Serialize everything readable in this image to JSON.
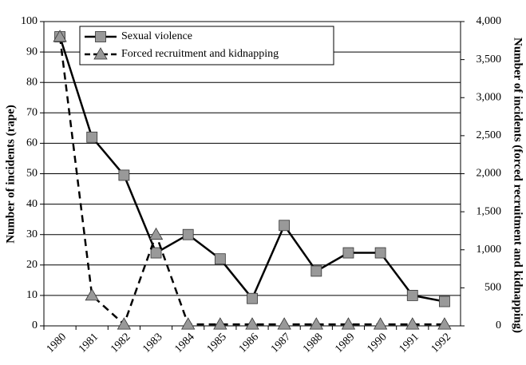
{
  "chart_data": {
    "type": "line",
    "categories": [
      "1980",
      "1981",
      "1982",
      "1983",
      "1984",
      "1985",
      "1986",
      "1987",
      "1988",
      "1989",
      "1990",
      "1991",
      "1992"
    ],
    "series": [
      {
        "name": "Sexual violence",
        "color": "#000000",
        "marker_color": "#999999",
        "marker": "square",
        "dash": false,
        "axis": "y",
        "values": [
          95,
          62,
          49.5,
          24,
          30,
          22,
          9,
          33,
          18,
          24,
          24,
          10,
          8
        ]
      },
      {
        "name": "Forced recruitment and kidnapping",
        "color": "#000000",
        "marker_color": "#999999",
        "marker": "triangle",
        "dash": true,
        "axis": "y2",
        "values": [
          3800,
          400,
          20,
          1200,
          20,
          20,
          20,
          20,
          20,
          20,
          20,
          20,
          20
        ]
      }
    ],
    "ylabel": "Number of incidents (rape)",
    "y2label": "Number of incidents (forced recruitment and kidnapping)",
    "ylim": [
      0,
      100
    ],
    "yticks": [
      0,
      10,
      20,
      30,
      40,
      50,
      60,
      70,
      80,
      90,
      100
    ],
    "y2lim": [
      0,
      4000
    ],
    "y2ticks": [
      0,
      500,
      {
        "value": 1000,
        "label": "1,000"
      },
      {
        "value": 1500,
        "label": "1,500"
      },
      {
        "value": 2000,
        "label": "2,000"
      },
      {
        "value": 2500,
        "label": "2,500"
      },
      {
        "value": 3000,
        "label": "3,000"
      },
      {
        "value": 3500,
        "label": "3,500"
      },
      {
        "value": 4000,
        "label": "4,000"
      }
    ],
    "grid": true,
    "legend": "upper left"
  }
}
